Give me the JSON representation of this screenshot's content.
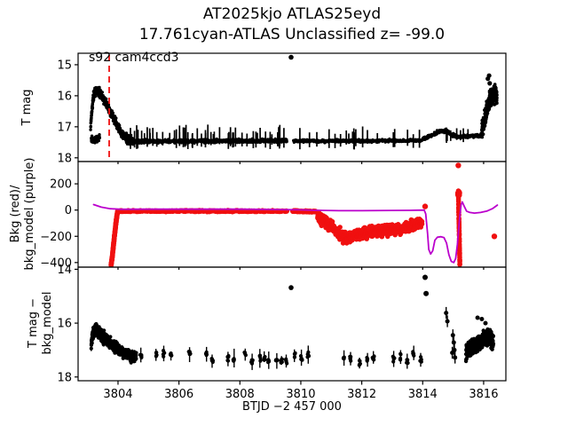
{
  "colors": {
    "black": "#000000",
    "red": "#f01010",
    "purple": "#bb00cc",
    "axis": "#000000"
  },
  "chart_data": {
    "type": "scatter",
    "title": "AT2025kjo  ATLAS25eyd",
    "subtitle": "17.761cyan-ATLAS Unclassified z= -99.0",
    "xlabel": "BTJD −2 457 000",
    "x_ticks": [
      3804,
      3806,
      3808,
      3810,
      3812,
      3814,
      3816
    ],
    "xlim": [
      3802.69,
      3816.73
    ],
    "grid": false,
    "annotation": {
      "text": "s92 cam4ccd3",
      "x": 3803.1,
      "y_mag": 14.85
    },
    "vline": {
      "x": 3803.71,
      "color": "red",
      "style": "dashed"
    },
    "panels": [
      {
        "name": "t-mag",
        "ylabel_lines": [
          "T mag"
        ],
        "ylim": [
          14.63,
          18.12
        ],
        "yticks": [
          {
            "v": 15,
            "label": "15"
          },
          {
            "v": 16,
            "label": "16"
          },
          {
            "v": 17,
            "label": "17"
          },
          {
            "v": 18,
            "label": "18"
          }
        ],
        "mag_axis_inverted": true,
        "series": [
          {
            "name": "flare-rise",
            "type": "scatter_path",
            "n": 170,
            "spread": 0.2,
            "r": 1.7,
            "path": [
              [
                3803.1,
                17.05
              ],
              [
                3803.14,
                16.5
              ],
              [
                3803.19,
                16.05
              ],
              [
                3803.26,
                15.84
              ],
              [
                3803.34,
                15.84
              ],
              [
                3803.44,
                15.98
              ]
            ]
          },
          {
            "name": "flare-decay",
            "type": "scatter_path",
            "n": 330,
            "spread": 0.2,
            "r": 1.7,
            "path": [
              [
                3803.44,
                15.98
              ],
              [
                3803.58,
                16.18
              ],
              [
                3803.72,
                16.45
              ],
              [
                3803.86,
                16.73
              ],
              [
                3804.0,
                17.0
              ],
              [
                3804.15,
                17.25
              ],
              [
                3804.32,
                17.4
              ],
              [
                3804.5,
                17.47
              ]
            ]
          },
          {
            "name": "flare-faint-smear",
            "type": "scatter_path",
            "n": 70,
            "spread": 0.18,
            "r": 1.7,
            "path": [
              [
                3803.12,
                17.45
              ],
              [
                3803.4,
                17.35
              ]
            ]
          },
          {
            "name": "quiescent-band-1",
            "type": "scatter_path",
            "n": 850,
            "spread": 0.09,
            "r": 1.5,
            "path": [
              [
                3804.5,
                17.47
              ],
              [
                3807.0,
                17.46
              ],
              [
                3809.55,
                17.45
              ]
            ]
          },
          {
            "name": "noise-spikes-1",
            "type": "spikes",
            "count": 55,
            "x0": 3804.4,
            "x1": 3809.5,
            "base": 17.42,
            "up": 0.5,
            "down": 0.3,
            "w": 1.7
          },
          {
            "name": "quiescent-band-2",
            "type": "scatter_path",
            "n": 620,
            "spread": 0.07,
            "r": 1.5,
            "path": [
              [
                3809.75,
                17.46
              ],
              [
                3812.0,
                17.46
              ],
              [
                3813.98,
                17.44
              ]
            ]
          },
          {
            "name": "noise-spikes-2",
            "type": "spikes",
            "count": 20,
            "x0": 3809.8,
            "x1": 3813.9,
            "base": 17.43,
            "up": 0.45,
            "down": 0.3,
            "w": 1.7
          },
          {
            "name": "late-bump",
            "type": "scatter_path",
            "n": 400,
            "spread": 0.08,
            "r": 1.5,
            "path": [
              [
                3814.0,
                17.4
              ],
              [
                3814.3,
                17.28
              ],
              [
                3814.55,
                17.13
              ],
              [
                3814.8,
                17.15
              ],
              [
                3815.0,
                17.27
              ],
              [
                3815.2,
                17.33
              ],
              [
                3815.6,
                17.3
              ],
              [
                3815.92,
                17.27
              ]
            ]
          },
          {
            "name": "noise-spikes-3",
            "type": "spikes",
            "count": 8,
            "x0": 3814.6,
            "x1": 3815.9,
            "base": 17.28,
            "up": 0.3,
            "down": 0.25,
            "w": 1.7
          },
          {
            "name": "final-rise",
            "type": "scatter_path",
            "n": 340,
            "spread": 0.4,
            "r": 1.8,
            "path": [
              [
                3815.94,
                17.1
              ],
              [
                3816.02,
                16.85
              ],
              [
                3816.1,
                16.5
              ],
              [
                3816.2,
                16.1
              ],
              [
                3816.32,
                15.95
              ],
              [
                3816.44,
                15.95
              ]
            ]
          },
          {
            "name": "final-rise-bright-tips",
            "type": "points",
            "r": 2.6,
            "pts": [
              [
                3816.14,
                15.45
              ],
              [
                3816.18,
                15.35
              ],
              [
                3816.2,
                15.6
              ]
            ]
          },
          {
            "name": "bright-outlier",
            "type": "points",
            "r": 2.8,
            "pts": [
              [
                3809.68,
                14.76
              ]
            ]
          }
        ]
      },
      {
        "name": "background",
        "ylabel_lines": [
          "Bkg (red)/",
          "bkg_model (purple)"
        ],
        "ylim": [
          370,
          -435
        ],
        "yticks": [
          {
            "v": 200,
            "label": "200"
          },
          {
            "v": 0,
            "label": "0"
          },
          {
            "v": -200,
            "label": "−200"
          },
          {
            "v": -400,
            "label": "−400"
          }
        ],
        "series": [
          {
            "name": "bkg-drop-stripe",
            "type": "scatter_path",
            "color": "red",
            "n": 120,
            "spread": 14,
            "r": 2.8,
            "path": [
              [
                3803.77,
                -425
              ],
              [
                3803.81,
                -360
              ],
              [
                3803.87,
                -230
              ],
              [
                3803.93,
                -100
              ],
              [
                3803.98,
                -15
              ]
            ]
          },
          {
            "name": "bkg-flat-band-1",
            "type": "scatter_path",
            "color": "red",
            "n": 520,
            "spread": 9,
            "r": 2.6,
            "path": [
              [
                3803.97,
                -8
              ],
              [
                3807.0,
                -8
              ],
              [
                3809.55,
                -8
              ]
            ]
          },
          {
            "name": "bkg-flat-band-2",
            "type": "scatter_path",
            "color": "red",
            "n": 130,
            "spread": 9,
            "r": 2.6,
            "path": [
              [
                3809.72,
                -8
              ],
              [
                3810.5,
                -12
              ]
            ]
          },
          {
            "name": "bkg-droop",
            "type": "scatter_path",
            "color": "red",
            "n": 680,
            "spread": 58,
            "r": 2.8,
            "path": [
              [
                3810.55,
                -45
              ],
              [
                3810.9,
                -100
              ],
              [
                3811.2,
                -170
              ],
              [
                3811.5,
                -215
              ],
              [
                3811.85,
                -190
              ],
              [
                3812.3,
                -165
              ],
              [
                3812.8,
                -150
              ],
              [
                3813.3,
                -138
              ],
              [
                3813.7,
                -112
              ],
              [
                3813.98,
                -90
              ]
            ]
          },
          {
            "name": "bkg-right-stripe",
            "type": "scatter_path",
            "color": "red",
            "n": 50,
            "spread": 10,
            "r": 2.8,
            "path": [
              [
                3815.17,
                150
              ],
              [
                3815.18,
                20
              ],
              [
                3815.2,
                -180
              ],
              [
                3815.22,
                -430
              ]
            ]
          },
          {
            "name": "bkg-right-top-blob",
            "type": "scatter_path",
            "color": "red",
            "n": 16,
            "spread": 28,
            "r": 3,
            "path": [
              [
                3815.15,
                115
              ],
              [
                3815.21,
                125
              ]
            ]
          },
          {
            "name": "bkg-outliers",
            "type": "points",
            "color": "red",
            "r": 3.2,
            "pts": [
              [
                3814.08,
                28
              ],
              [
                3815.17,
                340
              ],
              [
                3816.35,
                -200
              ]
            ]
          },
          {
            "name": "bkg-model-line",
            "type": "line",
            "color": "purple",
            "w": 1.8,
            "path": [
              [
                3803.2,
                42
              ],
              [
                3803.45,
                22
              ],
              [
                3803.75,
                10
              ],
              [
                3804.1,
                6
              ],
              [
                3805.0,
                7
              ],
              [
                3806.0,
                7
              ],
              [
                3807.0,
                7
              ],
              [
                3808.0,
                7
              ],
              [
                3809.0,
                5
              ],
              [
                3810.0,
                2
              ],
              [
                3810.6,
                -2
              ],
              [
                3811.3,
                -5
              ],
              [
                3812.0,
                -5
              ],
              [
                3813.0,
                -3
              ],
              [
                3813.6,
                -2
              ],
              [
                3814.05,
                0
              ],
              [
                3814.1,
                -30
              ],
              [
                3814.16,
                -180
              ],
              [
                3814.2,
                -300
              ],
              [
                3814.26,
                -335
              ],
              [
                3814.33,
                -310
              ],
              [
                3814.4,
                -230
              ],
              [
                3814.48,
                -207
              ],
              [
                3814.6,
                -203
              ],
              [
                3814.7,
                -210
              ],
              [
                3814.78,
                -250
              ],
              [
                3814.86,
                -340
              ],
              [
                3814.94,
                -392
              ],
              [
                3815.02,
                -400
              ],
              [
                3815.08,
                -370
              ],
              [
                3815.14,
                -260
              ],
              [
                3815.2,
                -90
              ],
              [
                3815.26,
                40
              ],
              [
                3815.3,
                62
              ],
              [
                3815.36,
                30
              ],
              [
                3815.44,
                -8
              ],
              [
                3815.55,
                -18
              ],
              [
                3815.7,
                -23
              ],
              [
                3815.9,
                -18
              ],
              [
                3816.1,
                -8
              ],
              [
                3816.3,
                12
              ],
              [
                3816.45,
                38
              ]
            ]
          }
        ]
      },
      {
        "name": "t-mag-minus-bkg-model",
        "ylabel_lines": [
          "T mag −",
          "bkg_model"
        ],
        "ylim": [
          13.92,
          18.14
        ],
        "yticks": [
          {
            "v": 14,
            "label": "14"
          },
          {
            "v": 16,
            "label": "16"
          },
          {
            "v": 18,
            "label": "18"
          }
        ],
        "mag_axis_inverted": true,
        "series": [
          {
            "name": "corr-flare-rise",
            "type": "scatter_path",
            "n": 200,
            "spread": 0.3,
            "r": 2.1,
            "ebar": 0.22,
            "path": [
              [
                3803.12,
                16.8
              ],
              [
                3803.18,
                16.35
              ],
              [
                3803.28,
                16.2
              ],
              [
                3803.45,
                16.45
              ],
              [
                3803.62,
                16.62
              ]
            ]
          },
          {
            "name": "corr-flare-decay",
            "type": "scatter_path",
            "n": 260,
            "spread": 0.3,
            "r": 2.1,
            "ebar": 0.22,
            "path": [
              [
                3803.62,
                16.62
              ],
              [
                3803.85,
                16.85
              ],
              [
                3804.1,
                17.05
              ],
              [
                3804.35,
                17.18
              ],
              [
                3804.6,
                17.28
              ]
            ]
          },
          {
            "name": "corr-quiescent-clusters",
            "type": "clusters",
            "x0": 3804.75,
            "x1": 3813.95,
            "step": 0.22,
            "mag": 17.32,
            "jitter": 0.17,
            "spread": 0.12,
            "pts": 5,
            "ebar": 0.28,
            "r": 2.1,
            "drop": 0.22
          },
          {
            "name": "corr-bright-outlier",
            "type": "points",
            "r": 2.8,
            "pts": [
              [
                3809.68,
                14.68
              ]
            ]
          },
          {
            "name": "corr-high-dots",
            "type": "points",
            "r": 3,
            "pts": [
              [
                3814.08,
                14.3
              ],
              [
                3814.11,
                14.9
              ]
            ]
          },
          {
            "name": "corr-mid-feature",
            "type": "points",
            "r": 2.5,
            "ebar": 0.22,
            "pts": [
              [
                3814.77,
                15.62
              ],
              [
                3814.81,
                15.93
              ],
              [
                3814.99,
                16.45
              ],
              [
                3815.02,
                16.72
              ],
              [
                3815.04,
                17.0
              ],
              [
                3815.06,
                17.28
              ],
              [
                3814.97,
                17.1
              ]
            ]
          },
          {
            "name": "corr-final-cluster",
            "type": "scatter_path",
            "n": 300,
            "spread": 0.42,
            "r": 2.2,
            "ebar": 0.26,
            "path": [
              [
                3815.42,
                17.05
              ],
              [
                3815.62,
                16.9
              ],
              [
                3815.82,
                16.72
              ],
              [
                3816.0,
                16.6
              ],
              [
                3816.18,
                16.55
              ],
              [
                3816.32,
                16.62
              ]
            ]
          },
          {
            "name": "corr-final-bright-dots",
            "type": "points",
            "r": 2.5,
            "pts": [
              [
                3815.8,
                15.8
              ],
              [
                3815.94,
                15.85
              ],
              [
                3816.06,
                16.0
              ]
            ]
          }
        ]
      }
    ]
  }
}
